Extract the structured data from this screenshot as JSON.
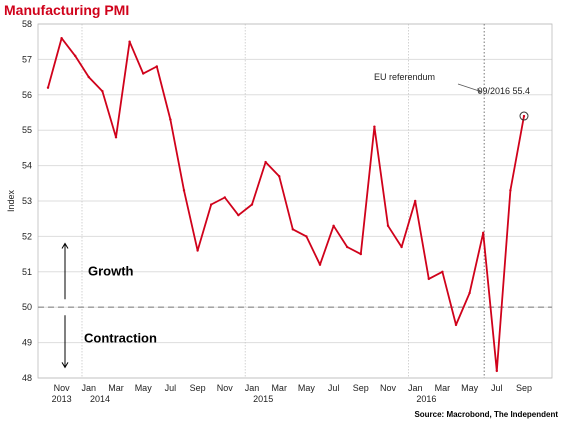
{
  "chart_data": {
    "type": "line",
    "title": "Manufacturing PMI",
    "ylabel": "Index",
    "ylim": [
      48,
      58
    ],
    "yticks": [
      48,
      49,
      50,
      51,
      52,
      53,
      54,
      55,
      56,
      57,
      58
    ],
    "x_tick_labels": [
      "Nov",
      "Jan",
      "Mar",
      "May",
      "Jul",
      "Sep",
      "Nov",
      "Jan",
      "Mar",
      "May",
      "Jul",
      "Sep",
      "Nov",
      "Jan",
      "Mar",
      "May",
      "Jul",
      "Sep"
    ],
    "year_labels": [
      "2013",
      "2014",
      "2015",
      "2016"
    ],
    "x": [
      "2013-10",
      "2013-11",
      "2013-12",
      "2014-01",
      "2014-02",
      "2014-03",
      "2014-04",
      "2014-05",
      "2014-06",
      "2014-07",
      "2014-08",
      "2014-09",
      "2014-10",
      "2014-11",
      "2014-12",
      "2015-01",
      "2015-02",
      "2015-03",
      "2015-04",
      "2015-05",
      "2015-06",
      "2015-07",
      "2015-08",
      "2015-09",
      "2015-10",
      "2015-11",
      "2015-12",
      "2016-01",
      "2016-02",
      "2016-03",
      "2016-04",
      "2016-05",
      "2016-06",
      "2016-07",
      "2016-08",
      "2016-09"
    ],
    "values": [
      56.2,
      57.6,
      57.1,
      56.5,
      56.1,
      54.8,
      57.5,
      56.6,
      56.8,
      55.3,
      53.3,
      51.6,
      52.9,
      53.1,
      52.6,
      52.9,
      54.1,
      53.7,
      52.2,
      52.0,
      51.2,
      52.3,
      51.7,
      51.5,
      55.1,
      52.3,
      51.7,
      53.0,
      50.8,
      51.0,
      49.5,
      50.4,
      52.1,
      48.2,
      53.3,
      55.4
    ],
    "reference_line": 50,
    "annotations": {
      "growth": "Growth",
      "contraction": "Contraction",
      "event": "EU referendum",
      "last_point": "09/2016 55.4"
    },
    "grid": true,
    "colors": {
      "line": "#d0021b",
      "grid": "#dddddd",
      "reference": "#999999"
    }
  },
  "source": "Source: Macrobond, The Independent"
}
